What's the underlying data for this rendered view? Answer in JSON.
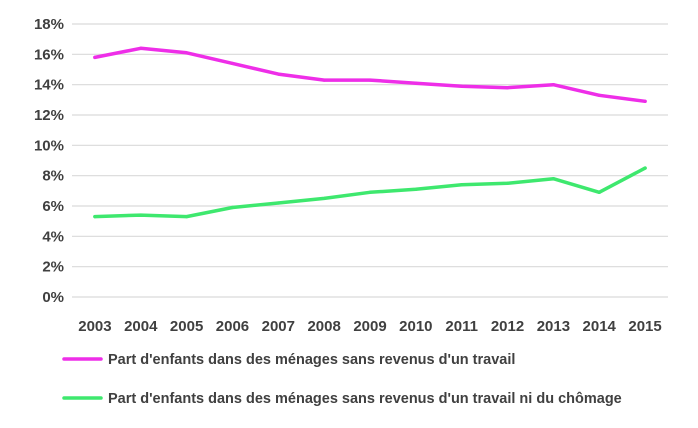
{
  "chart_data": {
    "type": "line",
    "title": "",
    "xlabel": "",
    "ylabel": "",
    "categories": [
      "2003",
      "2004",
      "2005",
      "2006",
      "2007",
      "2008",
      "2009",
      "2010",
      "2011",
      "2012",
      "2013",
      "2014",
      "2015"
    ],
    "ylim": [
      0,
      18
    ],
    "yticks": [
      0,
      2,
      4,
      6,
      8,
      10,
      12,
      14,
      16,
      18
    ],
    "ytick_labels": [
      "0%",
      "2%",
      "4%",
      "6%",
      "8%",
      "10%",
      "12%",
      "14%",
      "16%",
      "18%"
    ],
    "grid": true,
    "legend_position": "bottom-left",
    "series": [
      {
        "name": "Part d'enfants dans des ménages sans revenus d'un travail",
        "color": "#ee2ee8",
        "values": [
          15.8,
          16.4,
          16.1,
          15.4,
          14.7,
          14.3,
          14.3,
          14.1,
          13.9,
          13.8,
          14.0,
          13.3,
          12.9
        ]
      },
      {
        "name": "Part d'enfants dans des ménages sans revenus d'un travail ni du chômage",
        "color": "#3ee86e",
        "values": [
          5.3,
          5.4,
          5.3,
          5.9,
          6.2,
          6.5,
          6.9,
          7.1,
          7.4,
          7.5,
          7.8,
          6.9,
          8.5
        ]
      }
    ],
    "gridline_color": "#d9d9d9"
  }
}
